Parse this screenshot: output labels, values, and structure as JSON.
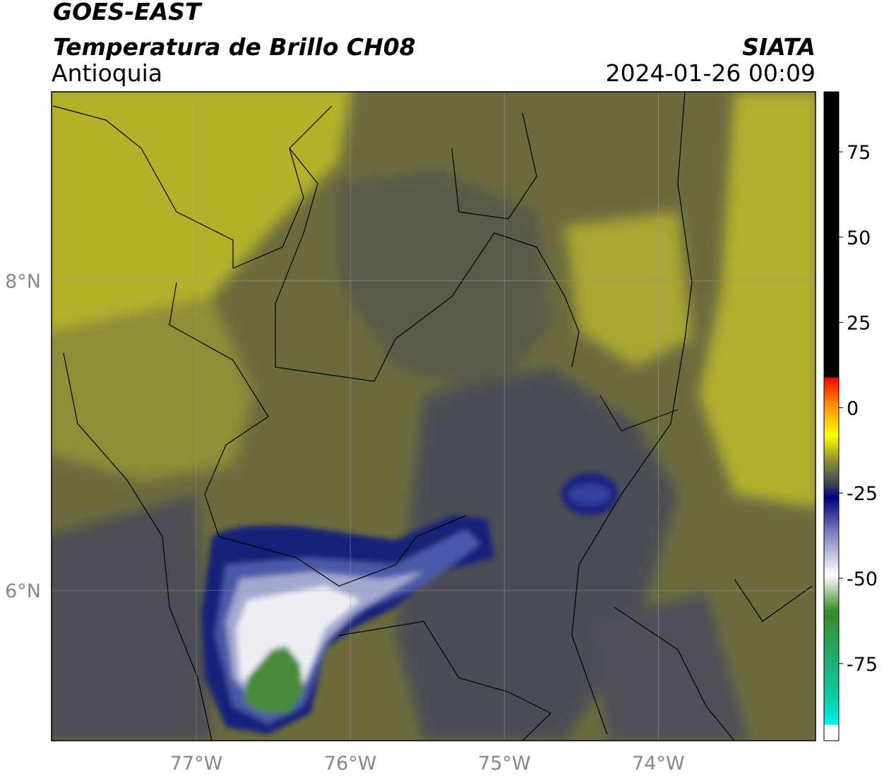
{
  "header": {
    "satellite": "GOES-EAST",
    "product": "Temperatura de Brillo CH08",
    "region": "Antioquia",
    "source": "SIATA",
    "datetime": "2024-01-26 00:09"
  },
  "map": {
    "xlim": [
      -77.94,
      -72.98
    ],
    "ylim": [
      5.03,
      9.22
    ],
    "xticks": [
      {
        "value": -77,
        "label": "77°W"
      },
      {
        "value": -76,
        "label": "76°W"
      },
      {
        "value": -75,
        "label": "75°W"
      },
      {
        "value": -74,
        "label": "74°W"
      }
    ],
    "yticks": [
      {
        "value": 6,
        "label": "6°N"
      },
      {
        "value": 8,
        "label": "8°N"
      }
    ]
  },
  "colorbar": {
    "lim": [
      -97.6,
      92.6
    ],
    "ticks": [
      75,
      50,
      25,
      0,
      -25,
      -50,
      -75
    ]
  }
}
